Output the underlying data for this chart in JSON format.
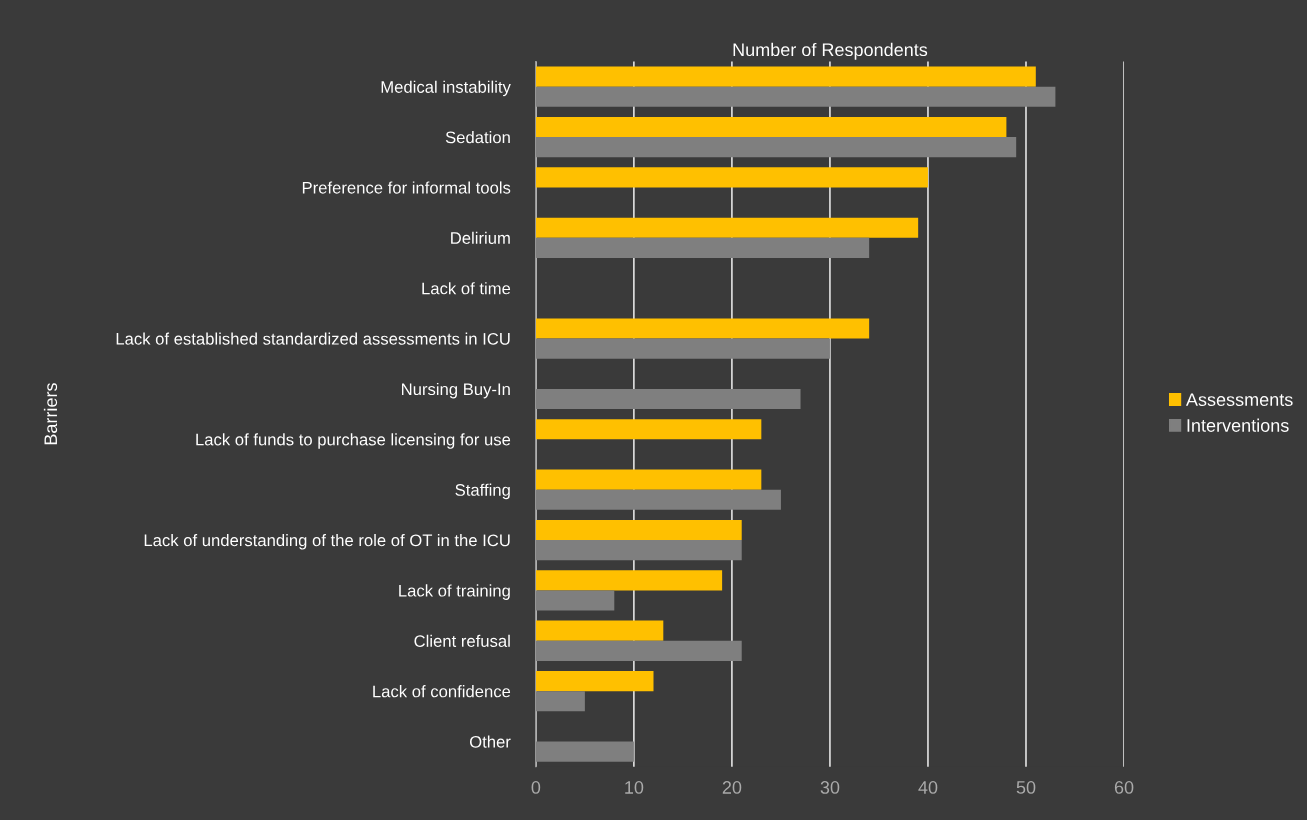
{
  "chart_data": {
    "type": "bar",
    "orientation": "horizontal",
    "title": "Number of Respondents",
    "ylabel": "Barriers",
    "categories": [
      "Medical instability",
      "Sedation",
      "Preference for informal tools",
      "Delirium",
      "Lack of time",
      "Lack of established standardized assessments in ICU",
      "Nursing Buy-In",
      "Lack of funds to purchase licensing for use",
      "Staffing",
      "Lack of understanding of the role of OT in the ICU",
      "Lack of training",
      "Client refusal",
      "Lack of confidence",
      "Other"
    ],
    "series": [
      {
        "name": "Assessments",
        "color": "#ffc000",
        "values": [
          51,
          48,
          40,
          39,
          null,
          34,
          null,
          23,
          23,
          21,
          19,
          13,
          12,
          null
        ]
      },
      {
        "name": "Interventions",
        "color": "#7f7f7f",
        "values": [
          53,
          49,
          null,
          34,
          null,
          30,
          27,
          null,
          25,
          21,
          8,
          21,
          5,
          10
        ]
      }
    ],
    "xlim": [
      0,
      60
    ],
    "xticks": [
      0,
      10,
      20,
      30,
      40,
      50,
      60
    ],
    "grid": "x",
    "legend": "right"
  }
}
